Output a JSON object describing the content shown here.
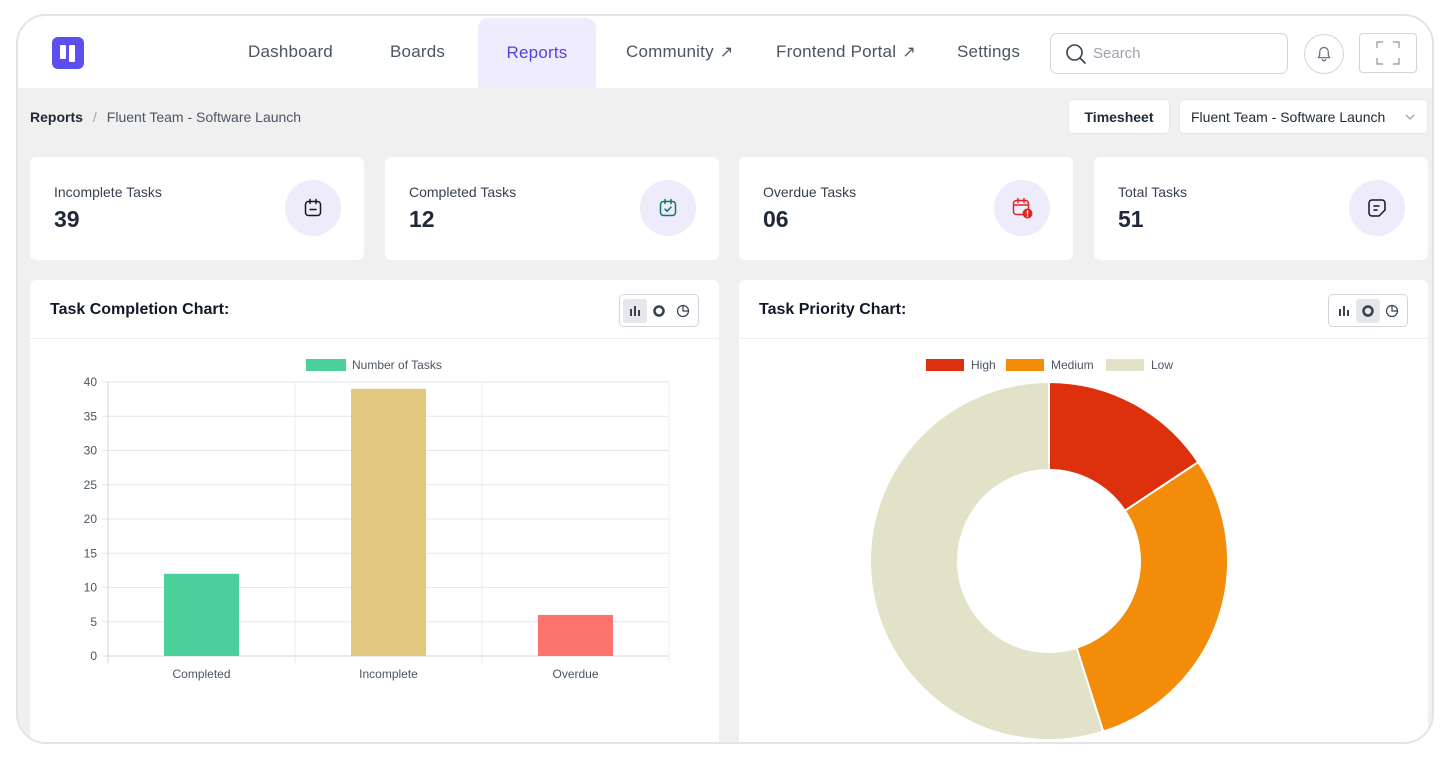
{
  "nav": {
    "logo_icon": "fluent-boards-logo",
    "items": [
      {
        "label": "Dashboard",
        "external": false
      },
      {
        "label": "Boards",
        "external": false
      },
      {
        "label": "Reports",
        "external": false,
        "active": true
      },
      {
        "label": "Community",
        "external": true
      },
      {
        "label": "Frontend Portal",
        "external": true
      },
      {
        "label": "Settings",
        "external": false
      }
    ],
    "external_glyph": "↗",
    "search_placeholder": "Search"
  },
  "breadcrumb": {
    "root": "Reports",
    "separator": "/",
    "current": "Fluent Team - Software Launch"
  },
  "toolbar": {
    "timesheet_label": "Timesheet",
    "board_select_value": "Fluent Team - Software Launch"
  },
  "stats": [
    {
      "label": "Incomplete Tasks",
      "value": "39",
      "icon": "calendar-minus-icon"
    },
    {
      "label": "Completed Tasks",
      "value": "12",
      "icon": "calendar-check-icon"
    },
    {
      "label": "Overdue Tasks",
      "value": "06",
      "icon": "calendar-alert-icon"
    },
    {
      "label": "Total Tasks",
      "value": "51",
      "icon": "task-sheet-icon"
    }
  ],
  "panels": {
    "completion_title": "Task Completion Chart:",
    "priority_title": "Task Priority Chart:"
  },
  "colors": {
    "brand": "#5b4ff0",
    "completed": "#4cd09b",
    "incomplete": "#e3c97f",
    "overdue": "#fb736c",
    "high": "#dd310e",
    "medium": "#f38c09",
    "low": "#e2e2c8"
  },
  "chart_data": [
    {
      "type": "bar",
      "categories": [
        "Completed",
        "Incomplete",
        "Overdue"
      ],
      "series": [
        {
          "name": "Number of Tasks",
          "values": [
            12,
            39,
            6
          ]
        }
      ],
      "ylim": [
        0,
        40
      ],
      "yticks": [
        0,
        5,
        10,
        15,
        20,
        25,
        30,
        35,
        40
      ],
      "grid": true,
      "legend": "top-center"
    },
    {
      "type": "pie",
      "donut": true,
      "labels": [
        "High",
        "Medium",
        "Low"
      ],
      "values": [
        8,
        15,
        28
      ],
      "legend": "top-center"
    }
  ]
}
